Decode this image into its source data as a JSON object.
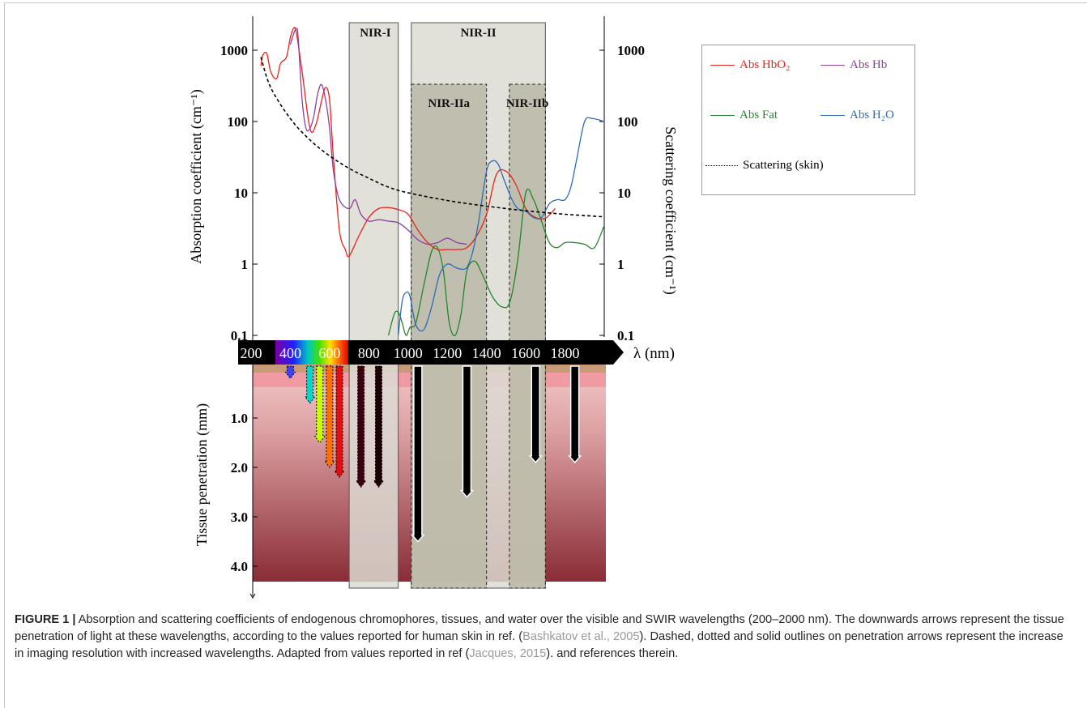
{
  "chart_data": {
    "type": "line",
    "left_axis": {
      "label": "Absorption coefficient (cm⁻¹)",
      "scale": "log",
      "ticks": [
        "0.1",
        "1",
        "10",
        "100",
        "1000"
      ],
      "ylim": [
        0.1,
        2000
      ]
    },
    "right_axis": {
      "label": "Scattering coefficient (cm⁻¹)",
      "scale": "log",
      "ticks": [
        "0.1",
        "1",
        "10",
        "100",
        "1000"
      ]
    },
    "x_axis": {
      "label": "λ (nm)",
      "ticks": [
        "200",
        "400",
        "600",
        "800",
        "1000",
        "1200",
        "1400",
        "1600",
        "1800"
      ],
      "xlim": [
        200,
        2000
      ]
    },
    "depth_axis": {
      "label": "Tissue penetration (mm)",
      "ticks": [
        "1.0",
        "2.0",
        "3.0",
        "4.0"
      ]
    },
    "regions": [
      {
        "label": "NIR-I",
        "range": [
          700,
          950
        ]
      },
      {
        "label": "NIR-II",
        "range": [
          1000,
          1700
        ]
      },
      {
        "label": "NIR-IIa",
        "range": [
          1000,
          1400
        ]
      },
      {
        "label": "NIR-IIb",
        "range": [
          1500,
          1700
        ]
      }
    ],
    "series": [
      {
        "name": "Abs HbO₂",
        "color": "#e8241c",
        "x": [
          250,
          260,
          280,
          300,
          330,
          350,
          380,
          400,
          415,
          430,
          460,
          500,
          530,
          560,
          580,
          600,
          620,
          650,
          680,
          700,
          750,
          800,
          850,
          900,
          950,
          1000,
          1050,
          1100,
          1150,
          1200,
          1250,
          1300,
          1350,
          1400,
          1450,
          1500,
          1550,
          1600,
          1650,
          1700,
          1750
        ],
        "y": [
          600,
          850,
          900,
          500,
          400,
          650,
          800,
          1500,
          2000,
          1800,
          500,
          80,
          90,
          200,
          300,
          200,
          30,
          3,
          1.6,
          1.3,
          2.5,
          4.5,
          6,
          6.2,
          5.8,
          5,
          3,
          2,
          1.6,
          1.6,
          1.6,
          1.7,
          2.5,
          5,
          18,
          20,
          13,
          6,
          4.5,
          4.4,
          6
        ]
      },
      {
        "name": "Abs Hb",
        "color": "#8e3fa0",
        "x": [
          400,
          420,
          433,
          440,
          460,
          480,
          500,
          520,
          540,
          560,
          580,
          600,
          620,
          650,
          700,
          730,
          760,
          800,
          850,
          900,
          950,
          1000,
          1050,
          1100,
          1150,
          1200,
          1250,
          1300
        ],
        "y": [
          1200,
          1800,
          2000,
          1500,
          200,
          80,
          80,
          120,
          250,
          330,
          200,
          80,
          20,
          8,
          6,
          8,
          5,
          4,
          4.2,
          4,
          3.8,
          3,
          2.2,
          1.9,
          2,
          2.3,
          2,
          1.9
        ]
      },
      {
        "name": "Abs Fat",
        "color": "#24862b",
        "x": [
          900,
          930,
          950,
          970,
          990,
          1010,
          1040,
          1080,
          1120,
          1150,
          1180,
          1210,
          1240,
          1270,
          1300,
          1340,
          1380,
          1430,
          1480,
          1520,
          1560,
          1600,
          1640,
          1680,
          1720,
          1760,
          1800,
          1850,
          1900,
          1950,
          2000
        ],
        "y": [
          0.1,
          0.2,
          0.21,
          0.15,
          0.1,
          0.13,
          0.15,
          0.5,
          1.5,
          1.7,
          0.8,
          0.15,
          0.1,
          0.2,
          0.8,
          1.1,
          0.7,
          0.35,
          0.25,
          0.3,
          1.2,
          10,
          8,
          4,
          2,
          1.7,
          2,
          2,
          1.9,
          1.7,
          3.5
        ]
      },
      {
        "name": "Abs H₂O",
        "color": "#2e6cb8",
        "x": [
          950,
          970,
          990,
          1010,
          1040,
          1080,
          1120,
          1160,
          1200,
          1240,
          1270,
          1300,
          1330,
          1360,
          1400,
          1430,
          1460,
          1490,
          1530,
          1560,
          1600,
          1640,
          1680,
          1720,
          1760,
          1800,
          1830,
          1860,
          1900,
          1940,
          2000
        ],
        "y": [
          0.1,
          0.3,
          0.4,
          0.35,
          0.14,
          0.12,
          0.25,
          0.7,
          1,
          0.9,
          0.85,
          0.9,
          1.5,
          4,
          20,
          28,
          25,
          15,
          8,
          6,
          5.5,
          4.5,
          4.5,
          7,
          8,
          8,
          12,
          30,
          100,
          110,
          100
        ]
      },
      {
        "name": "Scattering (skin)",
        "color": "#000000",
        "dash": "dotted",
        "x": [
          250,
          300,
          400,
          500,
          600,
          700,
          800,
          900,
          1000,
          1200,
          1400,
          1600,
          1800,
          2000
        ],
        "y": [
          800,
          300,
          110,
          55,
          33,
          22,
          16,
          12,
          10,
          7.8,
          6.5,
          5.6,
          5,
          4.6
        ]
      }
    ],
    "penetration": {
      "arrows": [
        {
          "wavelength": 400,
          "depth": 0.2,
          "color": "#4040ff"
        },
        {
          "wavelength": 500,
          "depth": 0.7,
          "color": "#00d8c8"
        },
        {
          "wavelength": 550,
          "depth": 1.5,
          "color": "#c8ff00"
        },
        {
          "wavelength": 600,
          "depth": 2.0,
          "color": "#ff7000"
        },
        {
          "wavelength": 650,
          "depth": 2.2,
          "color": "#e01010"
        },
        {
          "wavelength": 760,
          "depth": 2.4,
          "color": "#3a0010"
        },
        {
          "wavelength": 850,
          "depth": 2.4,
          "color": "#1a0000"
        },
        {
          "wavelength": 1050,
          "depth": 3.5,
          "color": "#000000"
        },
        {
          "wavelength": 1300,
          "depth": 2.6,
          "color": "#000000"
        },
        {
          "wavelength": 1650,
          "depth": 1.9,
          "color": "#000000"
        },
        {
          "wavelength": 1850,
          "depth": 1.9,
          "color": "#000000"
        }
      ]
    }
  },
  "legend": [
    {
      "label": "Abs HbO₂",
      "color": "#e8241c",
      "style": "solid"
    },
    {
      "label": "Abs Hb",
      "color": "#8e3fa0",
      "style": "solid"
    },
    {
      "label": "Abs Fat",
      "color": "#24862b",
      "style": "solid"
    },
    {
      "label": "Abs H₂O",
      "color": "#2e6cb8",
      "style": "solid"
    },
    {
      "label": "Scattering (skin)",
      "color": "#000000",
      "style": "dotted"
    }
  ],
  "caption": {
    "label": "FIGURE 1 |",
    "text1": " Absorption and scattering coefficients of endogenous chromophores, tissues, and water over the visible and SWIR wavelengths (200–2000 nm). The downwards arrows represent the tissue penetration of light at these wavelengths, according to the values reported for human skin in ref. (",
    "ref1": "Bashkatov et al., 2005",
    "text2": "). Dashed, dotted and solid outlines on penetration arrows represent the increase in imaging resolution with increased wavelengths. Adapted from values reported in ref (",
    "ref2": "Jacques, 2015",
    "text3": "). and references therein."
  }
}
